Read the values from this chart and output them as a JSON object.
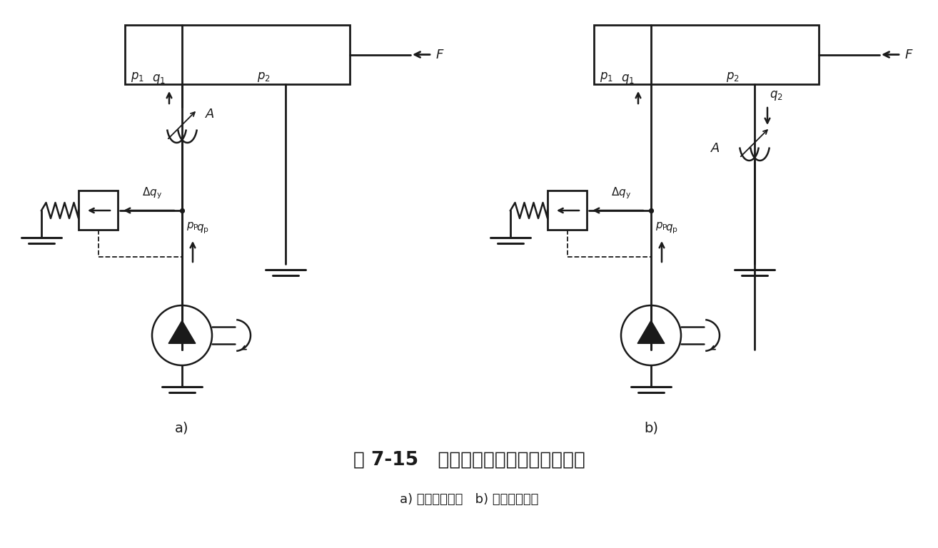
{
  "title": "图 7-15   节流阀进、回油节流调速回路",
  "subtitle": "a) 进油节流调速   b) 回油节流调速",
  "bg_color": "#ffffff",
  "line_color": "#1a1a1a",
  "label_a": "a)",
  "label_b": "b)",
  "fig_width": 13.14,
  "fig_height": 7.68,
  "dpi": 100
}
